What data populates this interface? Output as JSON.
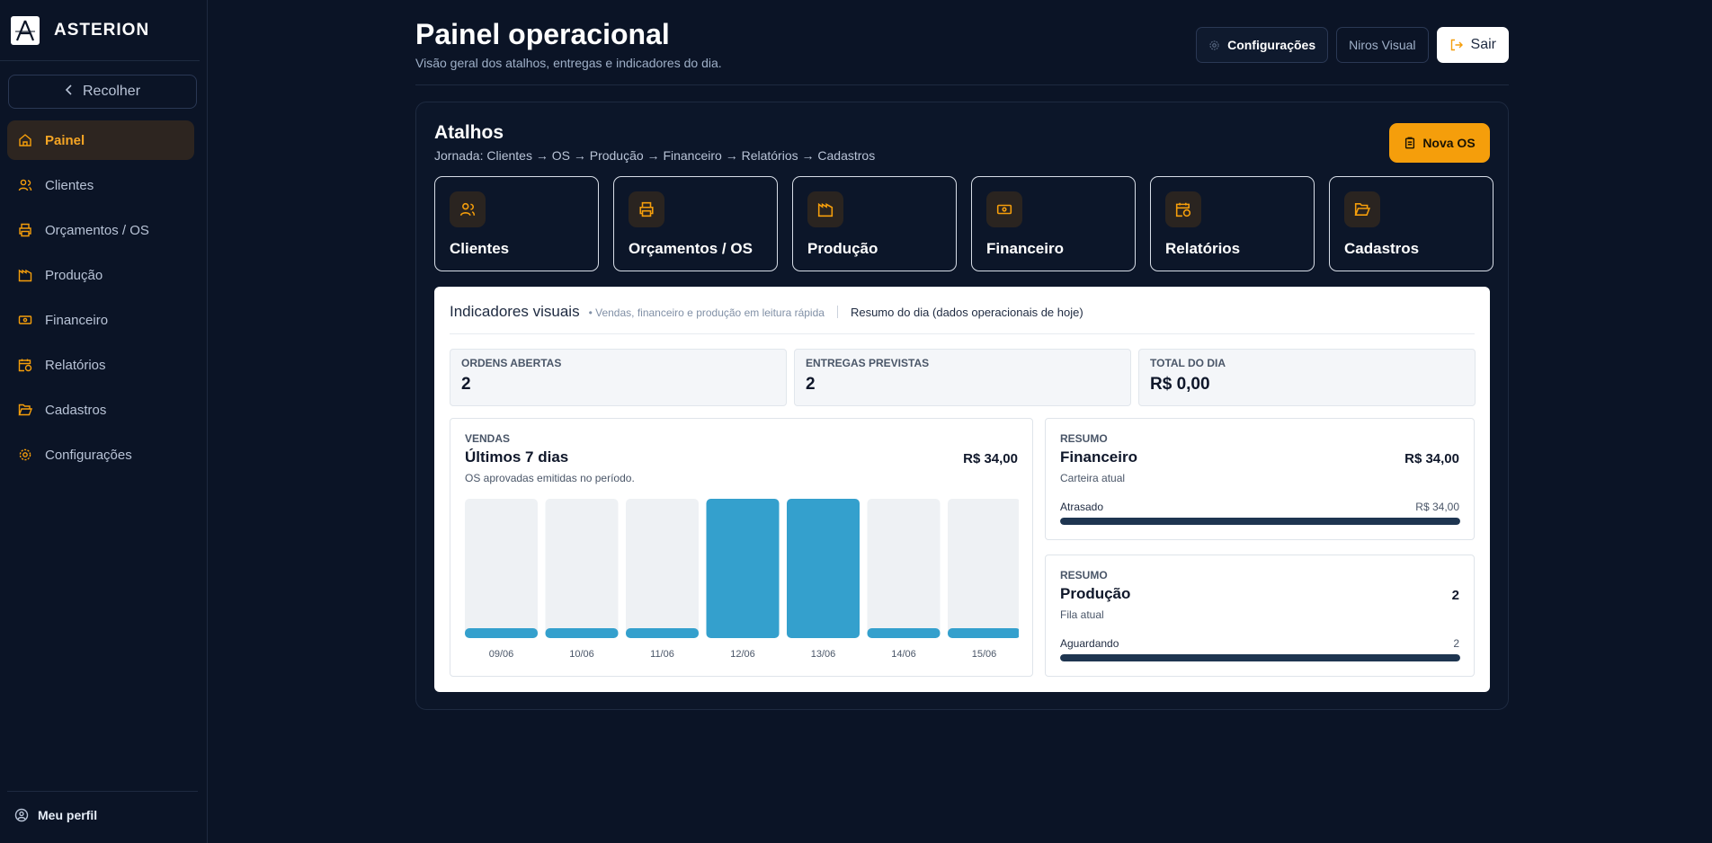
{
  "brand": {
    "name": "ASTERION"
  },
  "sidebar": {
    "collapse_label": "Recolher",
    "items": [
      {
        "label": "Painel",
        "icon": "home-icon",
        "active": true
      },
      {
        "label": "Clientes",
        "icon": "users-icon"
      },
      {
        "label": "Orçamentos / OS",
        "icon": "printer-icon"
      },
      {
        "label": "Produção",
        "icon": "factory-icon"
      },
      {
        "label": "Financeiro",
        "icon": "banknote-icon"
      },
      {
        "label": "Relatórios",
        "icon": "calendar-clock-icon"
      },
      {
        "label": "Cadastros",
        "icon": "folder-open-icon"
      },
      {
        "label": "Configurações",
        "icon": "gear-icon"
      }
    ],
    "profile_label": "Meu perfil"
  },
  "header": {
    "title": "Painel operacional",
    "subtitle": "Visão geral dos atalhos, entregas e indicadores do dia.",
    "config_label": "Configurações",
    "niros_label": "Niros Visual",
    "logout_label": "Sair"
  },
  "atalhos": {
    "title": "Atalhos",
    "journey": "Jornada: Clientes → OS → Produção → Financeiro → Relatórios → Cadastros",
    "new_os_label": "Nova OS",
    "items": [
      {
        "label": "Clientes",
        "icon": "users-icon"
      },
      {
        "label": "Orçamentos / OS",
        "icon": "printer-icon"
      },
      {
        "label": "Produção",
        "icon": "factory-icon"
      },
      {
        "label": "Financeiro",
        "icon": "banknote-icon"
      },
      {
        "label": "Relatórios",
        "icon": "calendar-clock-icon"
      },
      {
        "label": "Cadastros",
        "icon": "folder-open-icon"
      }
    ]
  },
  "indicators": {
    "title": "Indicadores visuais",
    "subtitle": "• Vendas, financeiro e produção em leitura rápida",
    "summary": "Resumo do dia (dados operacionais de hoje)",
    "stats": [
      {
        "label": "ORDENS ABERTAS",
        "value": "2"
      },
      {
        "label": "ENTREGAS PREVISTAS",
        "value": "2"
      },
      {
        "label": "TOTAL DO DIA",
        "value": "R$ 0,00"
      }
    ]
  },
  "sales": {
    "kicker": "VENDAS",
    "title": "Últimos 7 dias",
    "subtitle": "OS aprovadas emitidas no período.",
    "total": "R$ 34,00"
  },
  "chart_data": {
    "type": "bar",
    "title": "Últimos 7 dias",
    "categories": [
      "09/06",
      "10/06",
      "11/06",
      "12/06",
      "13/06",
      "14/06",
      "15/06"
    ],
    "values": [
      0,
      0,
      0,
      17,
      17,
      0,
      0
    ],
    "ylim": [
      0,
      17
    ],
    "colors": {
      "bar": "#34a0cd",
      "track": "#eef1f4"
    }
  },
  "finance": {
    "kicker": "RESUMO",
    "title": "Financeiro",
    "subtitle": "Carteira atual",
    "value": "R$ 34,00",
    "progress_label": "Atrasado",
    "progress_value": "R$ 34,00",
    "progress_fraction": 1.0
  },
  "production": {
    "kicker": "RESUMO",
    "title": "Produção",
    "subtitle": "Fila atual",
    "value": "2",
    "progress_label": "Aguardando",
    "progress_value": "2",
    "progress_fraction": 1.0
  },
  "colors": {
    "accent": "#f59e0b",
    "bar": "#34a0cd",
    "background": "#0b1426"
  }
}
